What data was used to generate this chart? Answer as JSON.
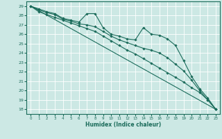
{
  "xlabel": "Humidex (Indice chaleur)",
  "bg_color": "#cce8e4",
  "grid_color": "#ffffff",
  "line_color": "#1a6b5a",
  "xlim": [
    -0.5,
    23.5
  ],
  "ylim": [
    17.5,
    29.5
  ],
  "xticks": [
    0,
    1,
    2,
    3,
    4,
    5,
    6,
    7,
    8,
    9,
    10,
    11,
    12,
    13,
    14,
    15,
    16,
    17,
    18,
    19,
    20,
    21,
    22,
    23
  ],
  "yticks": [
    18,
    19,
    20,
    21,
    22,
    23,
    24,
    25,
    26,
    27,
    28,
    29
  ],
  "line1_x": [
    0,
    1,
    2,
    3,
    4,
    5,
    6,
    7,
    8,
    9,
    10,
    11,
    12,
    13,
    14,
    15,
    16,
    17,
    18,
    19,
    20,
    21,
    22,
    23
  ],
  "line1_y": [
    29.0,
    28.7,
    28.4,
    28.2,
    27.7,
    27.5,
    27.3,
    28.2,
    28.2,
    26.7,
    26.0,
    25.8,
    25.5,
    25.4,
    26.7,
    26.0,
    25.9,
    25.5,
    24.8,
    23.2,
    21.5,
    20.2,
    19.2,
    18.0
  ],
  "line2_x": [
    0,
    1,
    2,
    3,
    4,
    5,
    6,
    7,
    8,
    9,
    10,
    11,
    12,
    13,
    14,
    15,
    16,
    17,
    18,
    19,
    20,
    21,
    22,
    23
  ],
  "line2_y": [
    29.0,
    28.6,
    28.3,
    28.1,
    27.6,
    27.4,
    27.1,
    27.0,
    26.8,
    26.3,
    25.8,
    25.4,
    25.1,
    24.8,
    24.5,
    24.3,
    24.0,
    23.5,
    22.8,
    22.1,
    21.1,
    20.0,
    19.0,
    18.0
  ],
  "line3_x": [
    0,
    1,
    2,
    3,
    4,
    5,
    6,
    7,
    8,
    9,
    10,
    11,
    12,
    13,
    14,
    15,
    16,
    17,
    18,
    19,
    20,
    21,
    22,
    23
  ],
  "line3_y": [
    29.0,
    28.4,
    28.1,
    27.8,
    27.5,
    27.2,
    26.9,
    26.6,
    26.3,
    25.8,
    25.3,
    24.8,
    24.3,
    23.9,
    23.4,
    22.9,
    22.4,
    21.9,
    21.4,
    20.9,
    20.3,
    19.8,
    19.0,
    18.0
  ],
  "line4_x": [
    0,
    23
  ],
  "line4_y": [
    29.0,
    18.0
  ]
}
